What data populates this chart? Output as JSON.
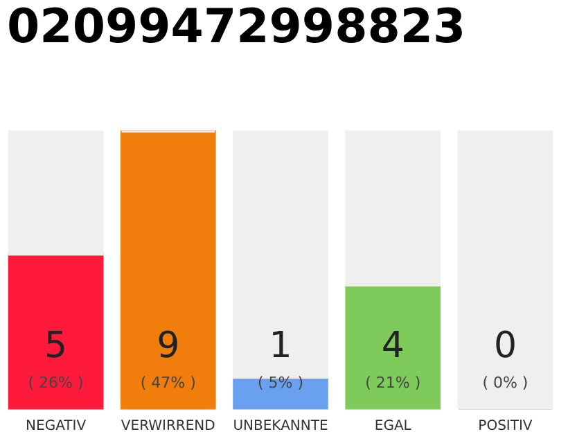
{
  "chart_data": {
    "type": "bar",
    "title": "02099472998823",
    "categories": [
      "NEGATIV",
      "VERWIRREND",
      "UNBEKANNTE",
      "EGAL",
      "POSITIV"
    ],
    "stacked": true,
    "tick_labels": "x",
    "series": [
      {
        "values": [
          5,
          9,
          1,
          4,
          0
        ],
        "value_labels": [
          "5",
          "9",
          "1",
          "4",
          "0"
        ],
        "colors": [
          "#ff1a3c",
          "#f07d0c",
          "#6aa1ee",
          "#7ecb5b",
          "#2db34a"
        ]
      },
      {
        "values": [
          4,
          0,
          8,
          5,
          9
        ],
        "color": "#efefef"
      }
    ],
    "annotations": [
      "( 26% )",
      "( 47% )",
      "( 5% )",
      "( 21% )",
      "( 0% )"
    ]
  }
}
